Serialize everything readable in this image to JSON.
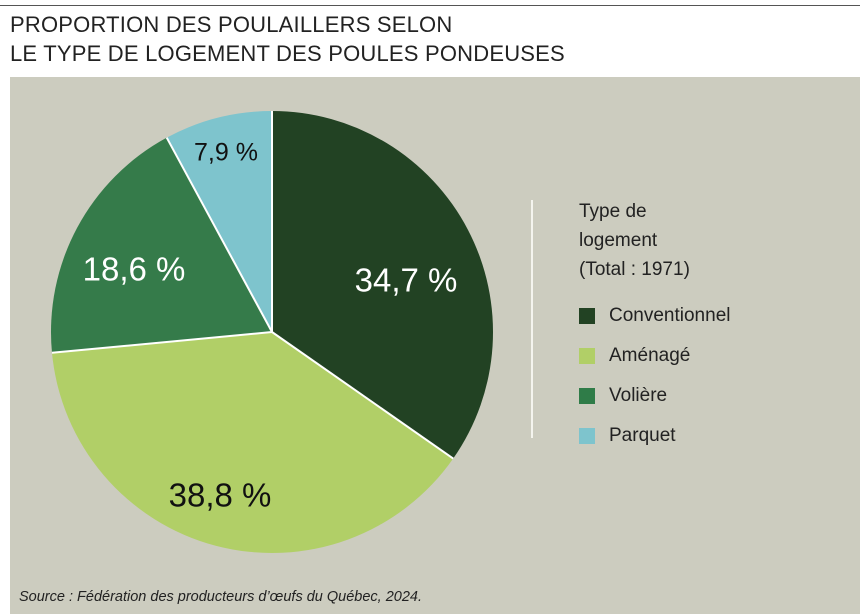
{
  "title": {
    "line1": "PROPORTION DES POULAILLERS SELON",
    "line2": "LE TYPE DE LOGEMENT DES POULES PONDEUSES"
  },
  "legend": {
    "title_line1": "Type de",
    "title_line2": "logement",
    "title_line3": "(Total : 1971)"
  },
  "source": "Source : Fédération des producteurs d’œufs du Québec, 2024.",
  "chart_data": {
    "type": "pie",
    "title": "PROPORTION DES POULAILLERS SELON LE TYPE DE LOGEMENT DES POULES PONDEUSES",
    "categories": [
      "Conventionnel",
      "Aménagé",
      "Volière",
      "Parquet"
    ],
    "values": [
      34.7,
      38.8,
      18.6,
      7.9
    ],
    "value_labels": [
      "34,7 %",
      "38,8 %",
      "18,6 %",
      "7,9 %"
    ],
    "colors": [
      "#224223",
      "#b1cf67",
      "#2f7c48",
      "#7ec4cd"
    ],
    "slice_colors": [
      "#224223",
      "#b1cf67",
      "#357b4a",
      "#7ec4cd"
    ],
    "label_colors": [
      "#ffffff",
      "#111111",
      "#ffffff",
      "#111111"
    ],
    "legend_title": "Type de logement (Total : 1971)",
    "legend_position": "right",
    "start_angle": "top",
    "direction": "clockwise",
    "total": 1971
  }
}
